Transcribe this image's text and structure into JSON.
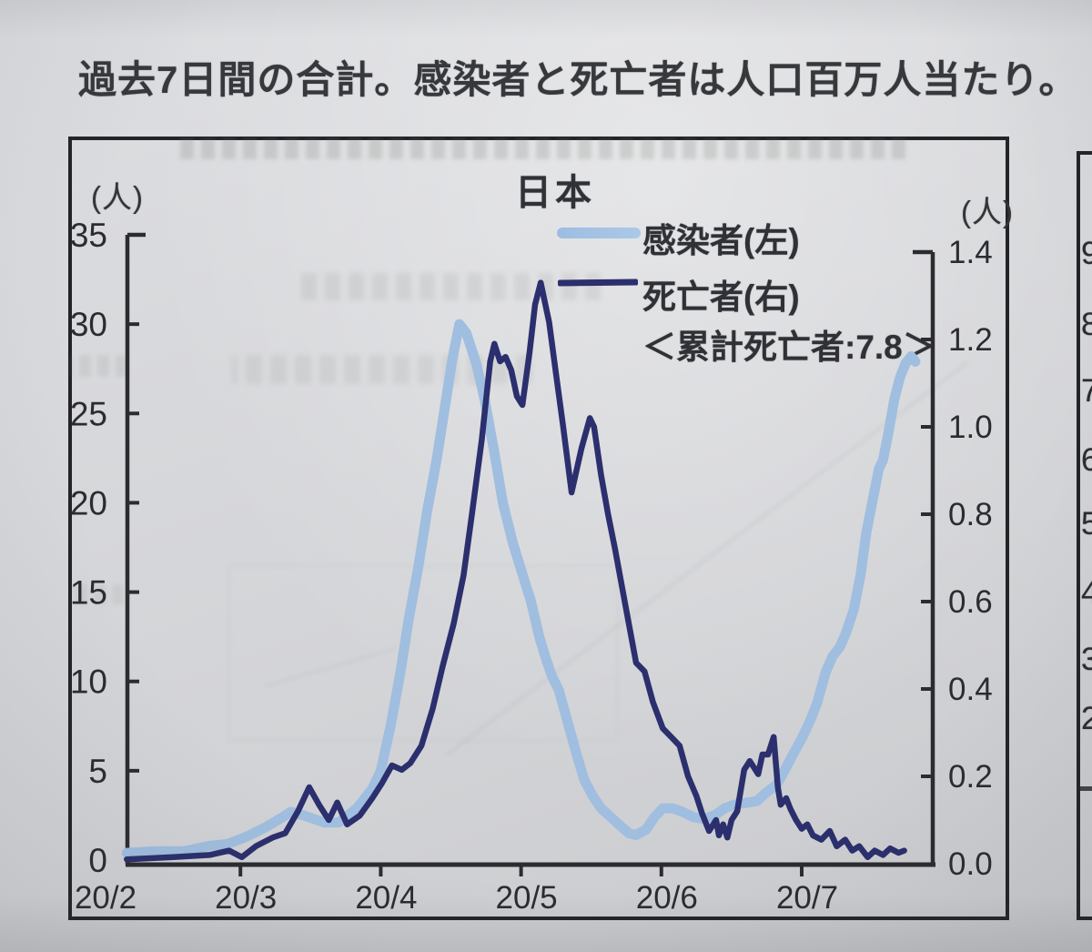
{
  "page": {
    "caption": "過去7日間の合計。感染者と死亡者は人口百万人当たり。"
  },
  "colors": {
    "paper": "#d4d5d8",
    "ink": "#2b2c30",
    "infected_line": "#a0bedf",
    "deaths_line": "#2b2f6d"
  },
  "chart_data": {
    "type": "line",
    "title": "日本",
    "annotation": "＜累計死亡者:7.8＞",
    "x_axis": {
      "tick_labels": [
        "20/2",
        "20/3",
        "20/4",
        "20/5",
        "20/6",
        "20/7"
      ],
      "note": "months, Feb 2020 - Jul 2020"
    },
    "left_axis": {
      "unit": "(人)",
      "min": 0,
      "max": 35,
      "ticks": [
        {
          "v": 0,
          "label": "0"
        },
        {
          "v": 5,
          "label": "5"
        },
        {
          "v": 10,
          "label": "10"
        },
        {
          "v": 15,
          "label": "15"
        },
        {
          "v": 20,
          "label": "20"
        },
        {
          "v": 25,
          "label": "25"
        },
        {
          "v": 30,
          "label": "30"
        },
        {
          "v": 35,
          "label": "35"
        }
      ]
    },
    "right_axis": {
      "unit": "(人)",
      "min": 0.0,
      "max": 1.4,
      "ticks": [
        {
          "v": 0.0,
          "label": "0.0"
        },
        {
          "v": 0.2,
          "label": "0.2"
        },
        {
          "v": 0.4,
          "label": "0.4"
        },
        {
          "v": 0.6,
          "label": "0.6"
        },
        {
          "v": 0.8,
          "label": "0.8"
        },
        {
          "v": 1.0,
          "label": "1.0"
        },
        {
          "v": 1.2,
          "label": "1.2"
        },
        {
          "v": 1.4,
          "label": "1.4"
        }
      ]
    },
    "series": [
      {
        "name": "感染者(左)",
        "axis": "left",
        "color": "#a0bedf",
        "stroke_width": 11,
        "points": [
          [
            0.19,
            0.4
          ],
          [
            0.4,
            0.5
          ],
          [
            0.6,
            0.5
          ],
          [
            0.78,
            0.8
          ],
          [
            0.91,
            0.9
          ],
          [
            1.04,
            1.3
          ],
          [
            1.17,
            1.8
          ],
          [
            1.3,
            2.4
          ],
          [
            1.36,
            2.7
          ],
          [
            1.45,
            2.5
          ],
          [
            1.6,
            2.1
          ],
          [
            1.7,
            2.1
          ],
          [
            1.83,
            2.9
          ],
          [
            1.94,
            4.0
          ],
          [
            2.0,
            5.0
          ],
          [
            2.07,
            7.5
          ],
          [
            2.14,
            10.5
          ],
          [
            2.2,
            13.5
          ],
          [
            2.27,
            16.5
          ],
          [
            2.33,
            19.5
          ],
          [
            2.4,
            22.5
          ],
          [
            2.46,
            25.5
          ],
          [
            2.51,
            28.0
          ],
          [
            2.56,
            30.0
          ],
          [
            2.61,
            29.5
          ],
          [
            2.68,
            27.8
          ],
          [
            2.74,
            25.8
          ],
          [
            2.81,
            22.8
          ],
          [
            2.87,
            20.0
          ],
          [
            2.94,
            17.8
          ],
          [
            2.99,
            16.5
          ],
          [
            3.07,
            14.5
          ],
          [
            3.13,
            12.5
          ],
          [
            3.18,
            11.2
          ],
          [
            3.22,
            10.3
          ],
          [
            3.27,
            9.5
          ],
          [
            3.34,
            7.5
          ],
          [
            3.4,
            5.8
          ],
          [
            3.45,
            4.5
          ],
          [
            3.51,
            3.6
          ],
          [
            3.57,
            2.9
          ],
          [
            3.64,
            2.4
          ],
          [
            3.71,
            1.9
          ],
          [
            3.77,
            1.5
          ],
          [
            3.82,
            1.4
          ],
          [
            3.89,
            1.7
          ],
          [
            3.95,
            2.4
          ],
          [
            4.01,
            2.9
          ],
          [
            4.08,
            2.9
          ],
          [
            4.15,
            2.7
          ],
          [
            4.23,
            2.4
          ],
          [
            4.3,
            2.3
          ],
          [
            4.38,
            2.5
          ],
          [
            4.45,
            2.9
          ],
          [
            4.52,
            3.1
          ],
          [
            4.6,
            3.2
          ],
          [
            4.68,
            3.3
          ],
          [
            4.75,
            3.8
          ],
          [
            4.82,
            4.2
          ],
          [
            4.87,
            4.9
          ],
          [
            4.93,
            5.8
          ],
          [
            5.0,
            6.8
          ],
          [
            5.06,
            7.8
          ],
          [
            5.11,
            8.8
          ],
          [
            5.17,
            10.5
          ],
          [
            5.22,
            11.4
          ],
          [
            5.27,
            11.9
          ],
          [
            5.31,
            12.6
          ],
          [
            5.37,
            14.0
          ],
          [
            5.42,
            16.0
          ],
          [
            5.46,
            18.3
          ],
          [
            5.51,
            20.3
          ],
          [
            5.55,
            21.9
          ],
          [
            5.58,
            22.4
          ],
          [
            5.62,
            24.0
          ],
          [
            5.66,
            25.8
          ],
          [
            5.7,
            27.0
          ],
          [
            5.74,
            27.8
          ],
          [
            5.78,
            28.2
          ],
          [
            5.81,
            27.9
          ]
        ]
      },
      {
        "name": "死亡者(右)",
        "axis": "right",
        "color": "#2b2f6d",
        "stroke_width": 6.5,
        "points": [
          [
            0.19,
            0.01
          ],
          [
            0.52,
            0.015
          ],
          [
            0.78,
            0.02
          ],
          [
            0.92,
            0.03
          ],
          [
            1.01,
            0.015
          ],
          [
            1.11,
            0.04
          ],
          [
            1.23,
            0.06
          ],
          [
            1.32,
            0.07
          ],
          [
            1.41,
            0.12
          ],
          [
            1.49,
            0.175
          ],
          [
            1.56,
            0.135
          ],
          [
            1.63,
            0.1
          ],
          [
            1.69,
            0.14
          ],
          [
            1.76,
            0.09
          ],
          [
            1.85,
            0.11
          ],
          [
            1.94,
            0.15
          ],
          [
            2.01,
            0.185
          ],
          [
            2.08,
            0.225
          ],
          [
            2.15,
            0.215
          ],
          [
            2.21,
            0.23
          ],
          [
            2.29,
            0.27
          ],
          [
            2.37,
            0.355
          ],
          [
            2.44,
            0.45
          ],
          [
            2.52,
            0.55
          ],
          [
            2.59,
            0.66
          ],
          [
            2.65,
            0.8
          ],
          [
            2.72,
            0.97
          ],
          [
            2.78,
            1.15
          ],
          [
            2.81,
            1.19
          ],
          [
            2.85,
            1.15
          ],
          [
            2.89,
            1.16
          ],
          [
            2.93,
            1.13
          ],
          [
            2.97,
            1.07
          ],
          [
            3.01,
            1.05
          ],
          [
            3.06,
            1.17
          ],
          [
            3.1,
            1.28
          ],
          [
            3.14,
            1.33
          ],
          [
            3.2,
            1.24
          ],
          [
            3.25,
            1.12
          ],
          [
            3.3,
            1.0
          ],
          [
            3.36,
            0.85
          ],
          [
            3.43,
            0.95
          ],
          [
            3.49,
            1.02
          ],
          [
            3.52,
            1.0
          ],
          [
            3.57,
            0.89
          ],
          [
            3.62,
            0.8
          ],
          [
            3.67,
            0.72
          ],
          [
            3.75,
            0.58
          ],
          [
            3.82,
            0.46
          ],
          [
            3.88,
            0.44
          ],
          [
            3.94,
            0.37
          ],
          [
            4.01,
            0.31
          ],
          [
            4.07,
            0.29
          ],
          [
            4.13,
            0.27
          ],
          [
            4.19,
            0.2
          ],
          [
            4.25,
            0.155
          ],
          [
            4.29,
            0.115
          ],
          [
            4.34,
            0.075
          ],
          [
            4.39,
            0.1
          ],
          [
            4.41,
            0.065
          ],
          [
            4.44,
            0.09
          ],
          [
            4.47,
            0.06
          ],
          [
            4.5,
            0.1
          ],
          [
            4.54,
            0.12
          ],
          [
            4.59,
            0.215
          ],
          [
            4.63,
            0.235
          ],
          [
            4.66,
            0.22
          ],
          [
            4.69,
            0.205
          ],
          [
            4.72,
            0.25
          ],
          [
            4.76,
            0.25
          ],
          [
            4.8,
            0.29
          ],
          [
            4.83,
            0.175
          ],
          [
            4.85,
            0.135
          ],
          [
            4.89,
            0.15
          ],
          [
            4.92,
            0.125
          ],
          [
            4.96,
            0.1
          ],
          [
            5.0,
            0.08
          ],
          [
            5.04,
            0.09
          ],
          [
            5.08,
            0.065
          ],
          [
            5.14,
            0.055
          ],
          [
            5.2,
            0.075
          ],
          [
            5.25,
            0.04
          ],
          [
            5.31,
            0.055
          ],
          [
            5.36,
            0.03
          ],
          [
            5.41,
            0.04
          ],
          [
            5.47,
            0.015
          ],
          [
            5.52,
            0.03
          ],
          [
            5.58,
            0.02
          ],
          [
            5.63,
            0.035
          ],
          [
            5.69,
            0.025
          ],
          [
            5.73,
            0.03
          ]
        ]
      }
    ]
  },
  "right_strip": {
    "labels": [
      "9",
      "8",
      "7",
      "6",
      "5",
      "4",
      "3",
      "2"
    ]
  }
}
